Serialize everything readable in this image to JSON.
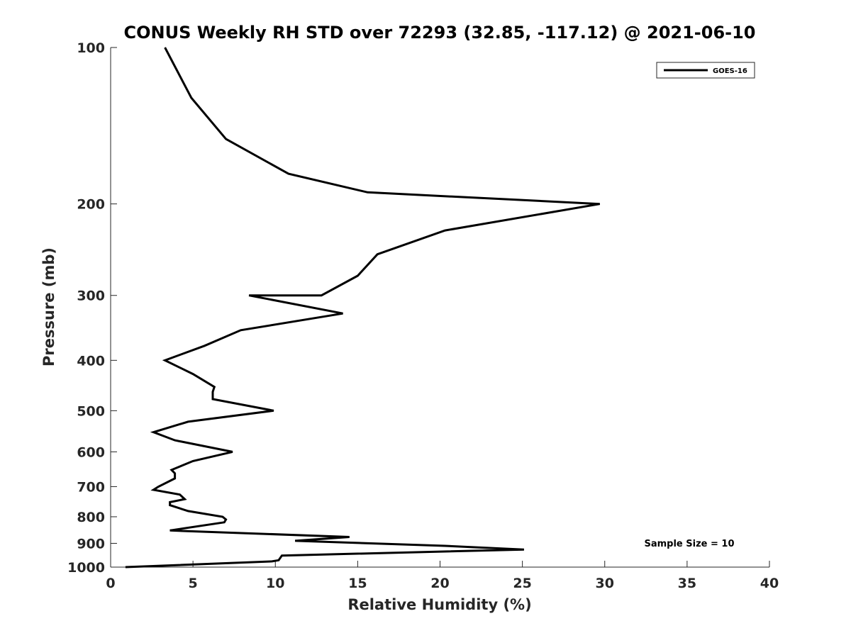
{
  "chart_data": {
    "type": "line",
    "title": "CONUS Weekly RH STD over 72293 (32.85, -117.12) @ 2021-06-10",
    "xlabel": "Relative Humidity (%)",
    "ylabel": "Pressure (mb)",
    "xlim": [
      0,
      40
    ],
    "ylim": [
      100,
      1000
    ],
    "yscale": "log",
    "yreversed": true,
    "xticks": [
      0,
      5,
      10,
      15,
      20,
      25,
      30,
      35,
      40
    ],
    "yticks": [
      100,
      200,
      300,
      400,
      500,
      600,
      700,
      800,
      900,
      1000
    ],
    "grid": false,
    "legend": {
      "entries": [
        "GOES-16"
      ],
      "location": "top-right"
    },
    "annotation": "Sample Size = 10",
    "series": [
      {
        "name": "GOES-16",
        "color": "#000000",
        "x": [
          3.3,
          4.9,
          7.0,
          10.8,
          15.6,
          29.7,
          20.3,
          16.2,
          15.0,
          12.8,
          8.4,
          14.1,
          7.9,
          5.7,
          3.3,
          5.0,
          6.3,
          6.2,
          6.2,
          9.9,
          4.7,
          2.6,
          3.9,
          7.4,
          5.0,
          3.7,
          3.9,
          3.9,
          2.9,
          2.6,
          4.2,
          4.5,
          3.6,
          3.6,
          4.7,
          6.8,
          7.0,
          6.9,
          3.6,
          14.5,
          11.2,
          20.3,
          25.1,
          10.4,
          10.2,
          9.8,
          0.9
        ],
        "y": [
          100,
          125,
          150,
          175,
          190,
          200,
          225,
          250,
          275,
          300,
          300,
          325,
          350,
          375,
          400,
          425,
          450,
          460,
          475,
          500,
          525,
          550,
          570,
          600,
          625,
          650,
          660,
          675,
          700,
          710,
          725,
          740,
          750,
          760,
          780,
          800,
          810,
          820,
          850,
          875,
          890,
          910,
          925,
          950,
          970,
          975,
          1000
        ]
      }
    ]
  }
}
